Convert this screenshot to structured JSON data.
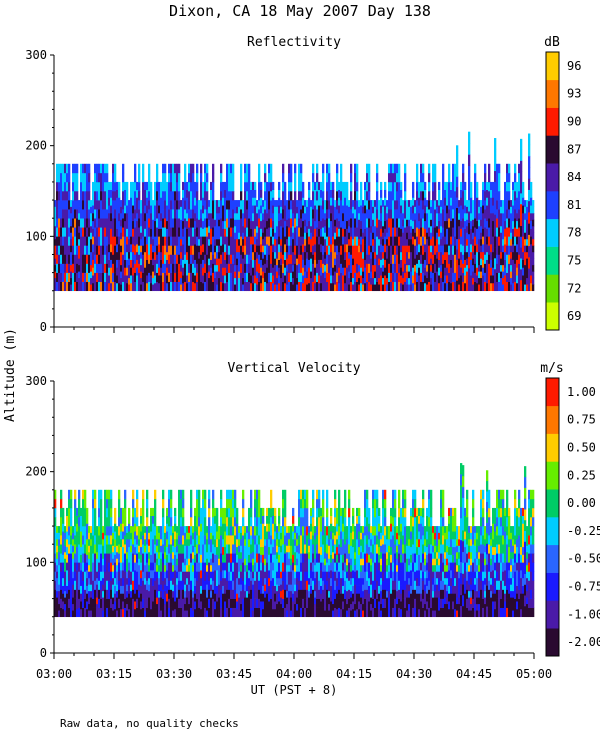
{
  "title": "Dixon, CA 18 May 2007  Day 138",
  "ylabel": "Altitude (m)",
  "xlabel": "UT  (PST + 8)",
  "footnote": "Raw data, no quality checks",
  "chart_data": [
    {
      "type": "heatmap",
      "title": "Reflectivity",
      "ylabel": "Altitude (m)",
      "xlabel": "UT  (PST + 8)",
      "x_ticks": [
        "03:00",
        "03:15",
        "03:30",
        "03:45",
        "04:00",
        "04:15",
        "04:30",
        "04:45",
        "05:00"
      ],
      "xlim": [
        "03:00",
        "05:00"
      ],
      "ylim": [
        0,
        300
      ],
      "y_ticks": [
        0,
        100,
        200,
        300
      ],
      "data_altitude_range": [
        40,
        220
      ],
      "colorbar": {
        "unit": "dB",
        "ticks": [
          "69",
          "72",
          "75",
          "78",
          "81",
          "84",
          "87",
          "90",
          "93",
          "96"
        ],
        "colors": [
          "#ccff00",
          "#66dd00",
          "#00dd88",
          "#00ccff",
          "#1e40ff",
          "#4a1aa8",
          "#2a0a30",
          "#ff1a00",
          "#ff7700",
          "#ffcc00"
        ]
      }
    },
    {
      "type": "heatmap",
      "title": "Vertical Velocity",
      "ylabel": "Altitude (m)",
      "xlabel": "UT  (PST + 8)",
      "x_ticks": [
        "03:00",
        "03:15",
        "03:30",
        "03:45",
        "04:00",
        "04:15",
        "04:30",
        "04:45",
        "05:00"
      ],
      "xlim": [
        "03:00",
        "05:00"
      ],
      "ylim": [
        0,
        300
      ],
      "y_ticks": [
        0,
        100,
        200,
        300
      ],
      "data_altitude_range": [
        40,
        220
      ],
      "colorbar": {
        "unit": "m/s",
        "ticks": [
          "-2.00",
          "-1.00",
          "-0.75",
          "-0.50",
          "-0.25",
          "0.00",
          "0.25",
          "0.50",
          "0.75",
          "1.00"
        ],
        "colors": [
          "#2a0a30",
          "#4a1aa8",
          "#1a1aff",
          "#2a66ff",
          "#00ccff",
          "#00cc66",
          "#66ee00",
          "#ffcc00",
          "#ff7700",
          "#ff1a00"
        ]
      }
    }
  ]
}
